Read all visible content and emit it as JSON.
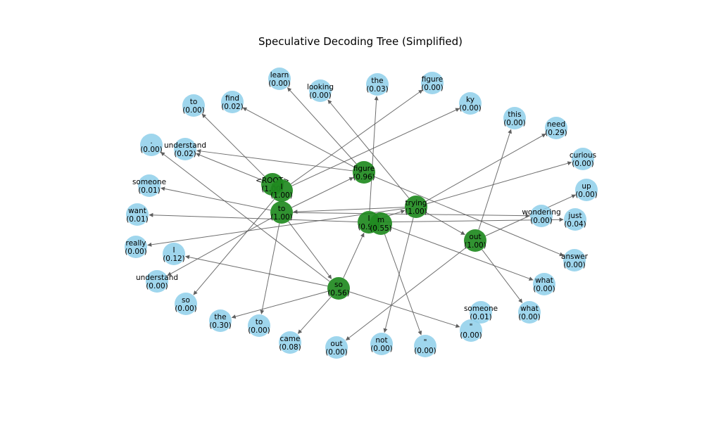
{
  "title": "Speculative Decoding Tree (Simplified)",
  "colors": {
    "accepted": "#1f8a1f",
    "candidate": "#8ecfea",
    "edge": "#555555"
  },
  "nodes": [
    {
      "id": "root",
      "label": "<ROOT>\n(1.00)",
      "status": "accepted"
    },
    {
      "id": "i_top",
      "label": "I\n(1.00)",
      "status": "accepted"
    },
    {
      "id": "figure_main",
      "label": "figure\n(0.96)",
      "status": "accepted"
    },
    {
      "id": "to_main",
      "label": "to\n(1.00)",
      "status": "accepted"
    },
    {
      "id": "trying",
      "label": "trying\n(1.00)",
      "status": "accepted"
    },
    {
      "id": "i_mid",
      "label": "I\n(0.94)",
      "status": "accepted"
    },
    {
      "id": "m",
      "label": "m\n(0.55)",
      "status": "accepted"
    },
    {
      "id": "out_main",
      "label": "out\n(1.00)",
      "status": "accepted"
    },
    {
      "id": "so_main",
      "label": "so\n(0.56)",
      "status": "accepted"
    },
    {
      "id": "learn",
      "label": "learn\n(0.00)",
      "status": "candidate"
    },
    {
      "id": "looking",
      "label": "looking\n(0.00)",
      "status": "candidate"
    },
    {
      "id": "the1",
      "label": "the\n(0.03)",
      "status": "candidate"
    },
    {
      "id": "figure2",
      "label": "figure\n(0.00)",
      "status": "candidate"
    },
    {
      "id": "to2",
      "label": "to\n(0.00)",
      "status": "candidate"
    },
    {
      "id": "find",
      "label": "find\n(0.02)",
      "status": "candidate"
    },
    {
      "id": "ky",
      "label": "ky\n(0.00)",
      "status": "candidate"
    },
    {
      "id": "this",
      "label": "this\n(0.00)",
      "status": "candidate"
    },
    {
      "id": "need",
      "label": "need\n(0.29)",
      "status": "candidate"
    },
    {
      "id": "dot",
      "label": ".\n(0.00)",
      "status": "candidate"
    },
    {
      "id": "understand1",
      "label": "understand\n(0.02)",
      "status": "candidate"
    },
    {
      "id": "curious",
      "label": "curious\n(0.00)",
      "status": "candidate"
    },
    {
      "id": "someone1",
      "label": "someone\n(0.01)",
      "status": "candidate"
    },
    {
      "id": "up",
      "label": "up\n(0.00)",
      "status": "candidate"
    },
    {
      "id": "want",
      "label": "want\n(0.01)",
      "status": "candidate"
    },
    {
      "id": "wondering",
      "label": "wondering\n(0.00)",
      "status": "candidate"
    },
    {
      "id": "just",
      "label": "just\n(0.04)",
      "status": "candidate"
    },
    {
      "id": "really",
      "label": "really\n(0.00)",
      "status": "candidate"
    },
    {
      "id": "i_small",
      "label": "I\n(0.12)",
      "status": "candidate"
    },
    {
      "id": "answer",
      "label": "answer\n(0.00)",
      "status": "candidate"
    },
    {
      "id": "understand2",
      "label": "understand\n(0.00)",
      "status": "candidate"
    },
    {
      "id": "what1",
      "label": "what\n(0.00)",
      "status": "candidate"
    },
    {
      "id": "so2",
      "label": "so\n(0.00)",
      "status": "candidate"
    },
    {
      "id": "what2",
      "label": "what\n(0.00)",
      "status": "candidate"
    },
    {
      "id": "someone2",
      "label": "someone\n(0.01)",
      "status": "candidate"
    },
    {
      "id": "the2",
      "label": "the\n(0.30)",
      "status": "candidate"
    },
    {
      "id": "to3",
      "label": "to\n(0.00)",
      "status": "candidate"
    },
    {
      "id": "quote1",
      "label": "\"\n(0.00)",
      "status": "candidate"
    },
    {
      "id": "came",
      "label": "came\n(0.08)",
      "status": "candidate"
    },
    {
      "id": "out2",
      "label": "out\n(0.00)",
      "status": "candidate"
    },
    {
      "id": "not",
      "label": "not\n(0.00)",
      "status": "candidate"
    },
    {
      "id": "quote2",
      "label": "\"\n(0.00)",
      "status": "candidate"
    }
  ],
  "edges": [
    [
      "root",
      "i_top"
    ],
    [
      "root",
      "to2"
    ],
    [
      "root",
      "understand1"
    ],
    [
      "i_top",
      "figure2"
    ],
    [
      "i_top",
      "ky"
    ],
    [
      "i_top",
      "so2"
    ],
    [
      "figure_main",
      "find"
    ],
    [
      "figure_main",
      "learn"
    ],
    [
      "figure_main",
      "understand1"
    ],
    [
      "figure_main",
      "answer"
    ],
    [
      "trying",
      "looking"
    ],
    [
      "trying",
      "to_main"
    ],
    [
      "trying",
      "need"
    ],
    [
      "trying",
      "curious"
    ],
    [
      "trying",
      "really"
    ],
    [
      "trying",
      "out_main"
    ],
    [
      "trying",
      "not"
    ],
    [
      "to_main",
      "figure_main"
    ],
    [
      "to_main",
      "someone1"
    ],
    [
      "to_main",
      "understand2"
    ],
    [
      "to_main",
      "to3"
    ],
    [
      "to_main",
      "so_main"
    ],
    [
      "to_main",
      "wondering"
    ],
    [
      "i_mid",
      "the1"
    ],
    [
      "i_mid",
      "want"
    ],
    [
      "i_mid",
      "trying"
    ],
    [
      "i_mid",
      "just"
    ],
    [
      "m",
      "what1"
    ],
    [
      "m",
      "quote2"
    ],
    [
      "out_main",
      "this"
    ],
    [
      "out_main",
      "up"
    ],
    [
      "out_main",
      "what2"
    ],
    [
      "out_main",
      "out2"
    ],
    [
      "so_main",
      "i_small"
    ],
    [
      "so_main",
      "the2"
    ],
    [
      "so_main",
      "came"
    ],
    [
      "so_main",
      "i_mid"
    ],
    [
      "so_main",
      "quote1"
    ],
    [
      "so_main",
      "dot"
    ]
  ]
}
